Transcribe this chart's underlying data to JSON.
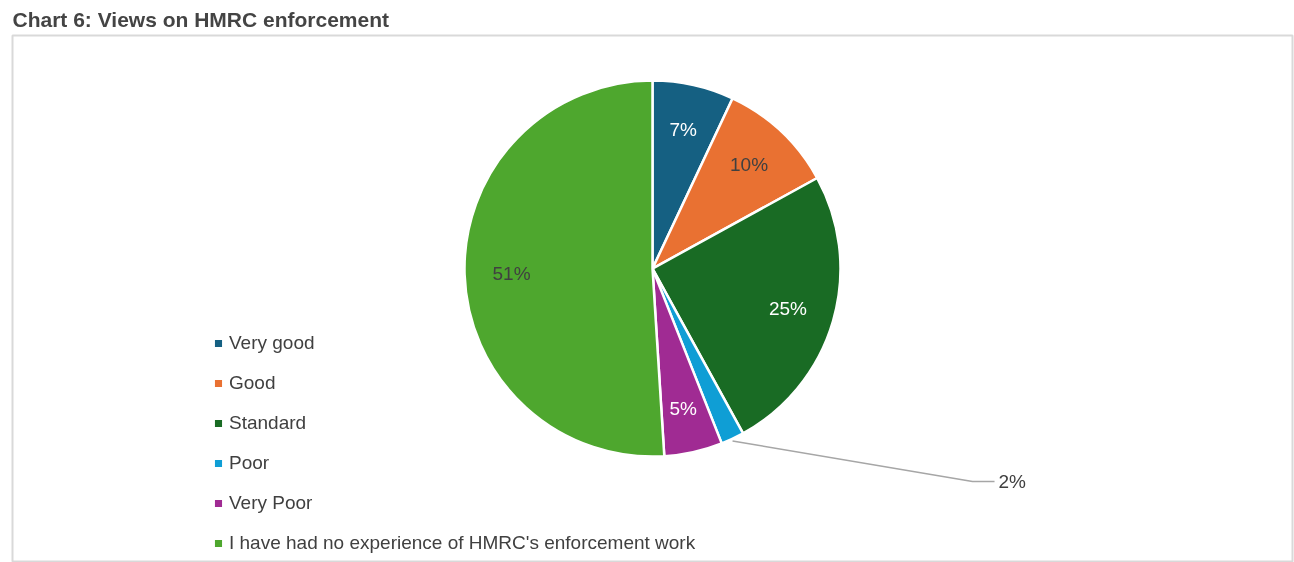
{
  "chart_data": {
    "type": "pie",
    "title": "Chart 6: Views on HMRC enforcement",
    "categories": [
      "Very good",
      "Good",
      "Standard",
      "Poor",
      "Very Poor",
      "I have had no experience of HMRC's enforcement work"
    ],
    "values": [
      7,
      10,
      25,
      2,
      5,
      51
    ],
    "colors": [
      "#156082",
      "#e97132",
      "#196b24",
      "#0f9ed5",
      "#a02b93",
      "#4ea72e"
    ],
    "value_labels": [
      "7%",
      "10%",
      "25%",
      "2%",
      "5%",
      "51%"
    ],
    "legend": "left"
  }
}
